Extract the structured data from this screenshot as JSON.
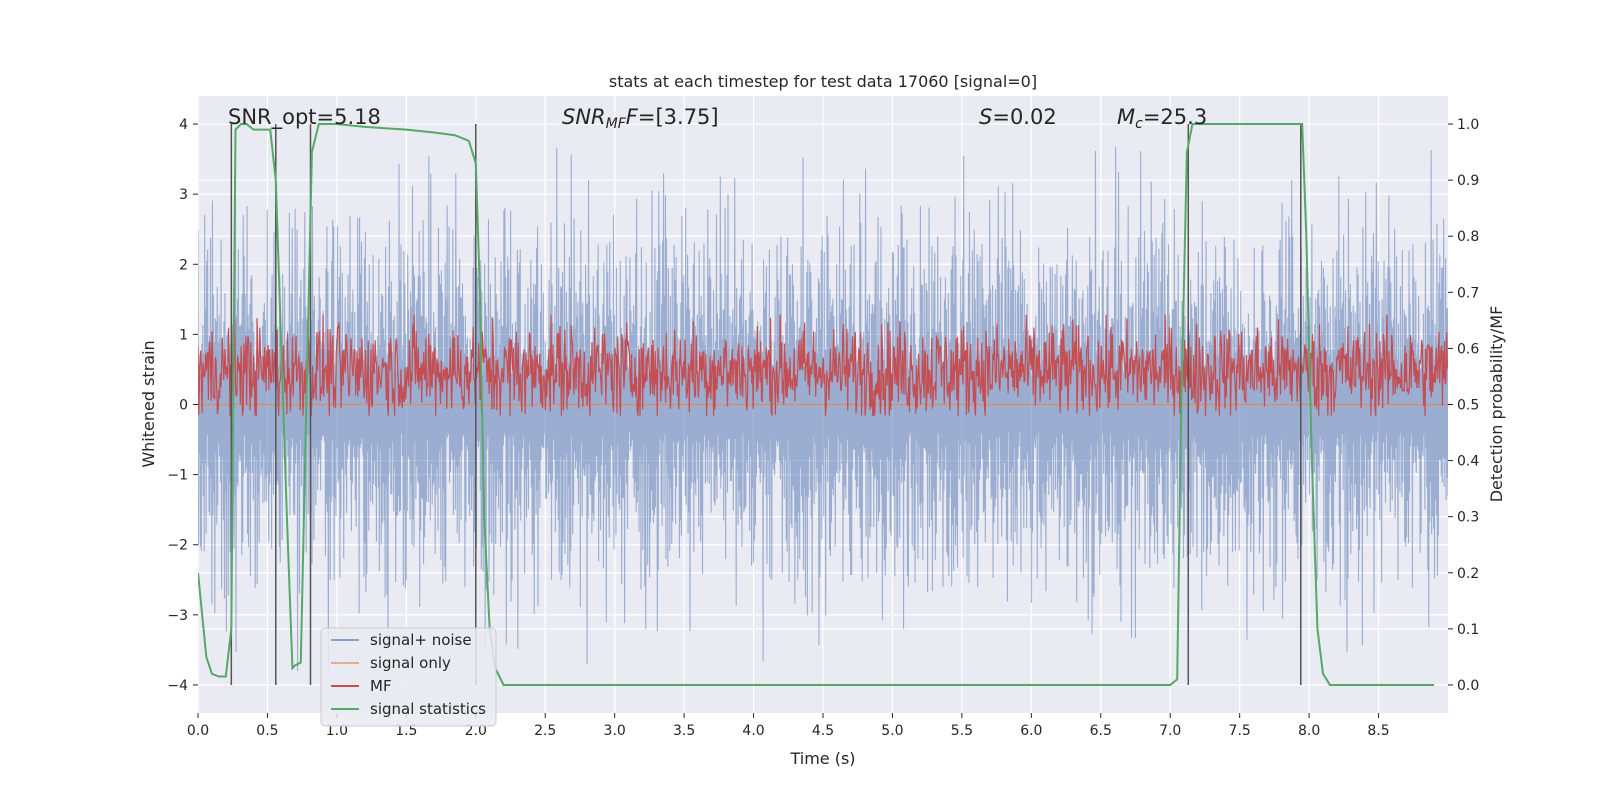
{
  "chart_data": {
    "type": "line",
    "title": "stats at each timestep for test data 17060 [signal=0]",
    "xlabel": "Time (s)",
    "ylabel_left": "Whitened strain",
    "ylabel_right": "Detection probability/MF",
    "xlim": [
      0.0,
      9.0
    ],
    "ylim_left": [
      -4.4,
      4.4
    ],
    "ylim_right": [
      -0.05,
      1.05
    ],
    "xticks": [
      0.0,
      0.5,
      1.0,
      1.5,
      2.0,
      2.5,
      3.0,
      3.5,
      4.0,
      4.5,
      5.0,
      5.5,
      6.0,
      6.5,
      7.0,
      7.5,
      8.0,
      8.5
    ],
    "xtick_labels": [
      "0.0",
      "0.5",
      "1.0",
      "1.5",
      "2.0",
      "2.5",
      "3.0",
      "3.5",
      "4.0",
      "4.5",
      "5.0",
      "5.5",
      "6.0",
      "6.5",
      "7.0",
      "7.5",
      "8.0",
      "8.5"
    ],
    "yticks_left": [
      4,
      3,
      2,
      1,
      0,
      -1,
      -2,
      -3,
      -4
    ],
    "ytick_labels_left": [
      "4",
      "3",
      "2",
      "1",
      "0",
      "−1",
      "−2",
      "−3",
      "−4"
    ],
    "yticks_right": [
      1.0,
      0.9,
      0.8,
      0.7,
      0.6,
      0.5,
      0.4,
      0.3,
      0.2,
      0.1,
      0.0
    ],
    "ytick_labels_right": [
      "1.0",
      "0.9",
      "0.8",
      "0.7",
      "0.6",
      "0.5",
      "0.4",
      "0.3",
      "0.2",
      "0.1",
      "0.0"
    ],
    "grid": true,
    "legend_location": "lower-left",
    "annotations": {
      "snr_opt": "SNR_opt=5.18",
      "snr_mf_label": "SNR",
      "snr_mf_sub": "MF",
      "snr_mf_value": "=[3.75]",
      "s_label": "S",
      "s_value": "=0.02",
      "mc_label": "M",
      "mc_sub": "c",
      "mc_value": "=25.3"
    },
    "series": [
      {
        "name": "signal+ noise",
        "color": "#4c72b0",
        "axis": "left",
        "kind": "noise",
        "amplitude_typical": 1.6,
        "amplitude_max": 3.8
      },
      {
        "name": "signal only",
        "color": "#dd8452",
        "axis": "left",
        "kind": "flat",
        "value": 0.0
      },
      {
        "name": "MF",
        "color": "#c44e52",
        "axis": "right",
        "kind": "noise",
        "range_typical": [
          0.5,
          0.62
        ],
        "range_max": [
          0.48,
          0.66
        ]
      },
      {
        "name": "signal statistics",
        "color": "#55a868",
        "axis": "right",
        "kind": "line",
        "x": [
          0.0,
          0.02,
          0.06,
          0.1,
          0.15,
          0.2,
          0.24,
          0.27,
          0.31,
          0.35,
          0.4,
          0.45,
          0.52,
          0.56,
          0.6,
          0.64,
          0.68,
          0.7,
          0.74,
          0.78,
          0.82,
          0.87,
          0.92,
          1.0,
          1.2,
          1.5,
          1.7,
          1.85,
          1.95,
          2.0,
          2.03,
          2.06,
          2.1,
          2.14,
          2.2,
          2.3,
          3.0,
          4.0,
          5.0,
          6.0,
          7.0,
          7.05,
          7.08,
          7.12,
          7.16,
          7.2,
          7.3,
          7.5,
          7.7,
          7.9,
          7.95,
          7.98,
          8.02,
          8.06,
          8.1,
          8.15,
          8.3,
          8.6,
          8.9
        ],
        "y": [
          0.2,
          0.15,
          0.05,
          0.02,
          0.015,
          0.015,
          0.1,
          0.99,
          1.0,
          1.0,
          0.99,
          0.99,
          0.99,
          0.9,
          0.6,
          0.3,
          0.03,
          0.035,
          0.04,
          0.5,
          0.95,
          1.0,
          1.0,
          1.0,
          0.995,
          0.99,
          0.985,
          0.98,
          0.97,
          0.93,
          0.7,
          0.3,
          0.1,
          0.03,
          0.0,
          0.0,
          0.0,
          0.0,
          0.0,
          0.0,
          0.0,
          0.01,
          0.5,
          0.95,
          1.0,
          1.0,
          1.0,
          1.0,
          1.0,
          1.0,
          1.0,
          0.8,
          0.4,
          0.1,
          0.02,
          0.0,
          0.0,
          0.0,
          0.0
        ]
      }
    ],
    "vertical_lines": [
      0.24,
      0.56,
      0.81,
      2.0,
      7.13,
      7.94
    ],
    "vertical_line_color": "#555555"
  }
}
